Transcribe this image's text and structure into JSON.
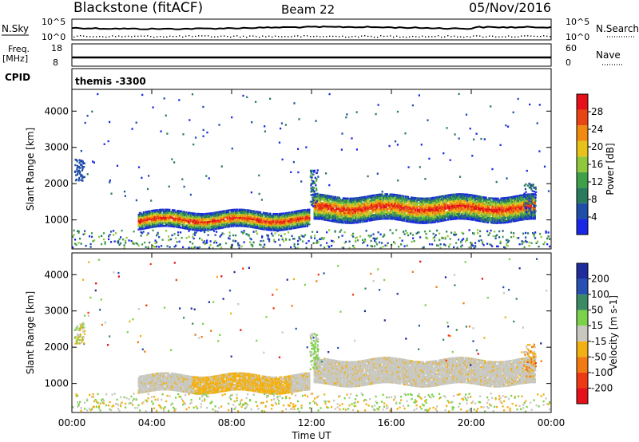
{
  "header": {
    "station": "Blackstone (fitACF)",
    "beam": "Beam 22",
    "date": "05/Nov/2016"
  },
  "panels": {
    "noise": {
      "left_label": "N.Sky",
      "right_label": "N.Search",
      "tick_hi_left": "10^5",
      "tick_lo_left": "10^0",
      "tick_hi_right": "10^5",
      "tick_lo_right": "10^0"
    },
    "freq": {
      "left_label_1": "Freq.",
      "left_label_2": "[MHz]",
      "right_label": "Nave",
      "tick_hi_left": "18",
      "tick_lo_left": "8",
      "tick_hi_right": "60",
      "tick_lo_right": "0"
    },
    "cpid": {
      "left_label": "CPID",
      "value": "themis -3300"
    }
  },
  "colors": {
    "power": [
      "#1a26e6",
      "#1f4ea8",
      "#2a7a5e",
      "#3fa04a",
      "#8fc83a",
      "#e8c21a",
      "#f08a10",
      "#e84512",
      "#e6101a"
    ],
    "velocity": [
      "#1e2c9c",
      "#2850b4",
      "#3a8a64",
      "#7bd24a",
      "#c8c8c0",
      "#f2b012",
      "#f27a10",
      "#ee3a12",
      "#e6101a"
    ]
  },
  "chart_data": [
    {
      "type": "heatmap",
      "name": "power",
      "ylabel": "Slant Range [km]",
      "yticks": [
        "1000",
        "2000",
        "3000",
        "4000"
      ],
      "ylim": [
        200,
        4600
      ],
      "xticks": [
        "00:00",
        "04:00",
        "08:00",
        "12:00",
        "16:00",
        "20:00",
        "00:00"
      ],
      "xlim": [
        0,
        24
      ],
      "colorbar_label": "Power [dB]",
      "colorbar_ticks": [
        "4",
        "8",
        "12",
        "16",
        "20",
        "24",
        "28"
      ],
      "echo_bands": [
        {
          "t_start": 3.3,
          "t_end": 11.9,
          "range_low": 800,
          "range_high": 1250,
          "peak_power_db": 28
        },
        {
          "t_start": 12.1,
          "t_end": 23.2,
          "range_low": 1000,
          "range_high": 1700,
          "peak_power_db": 30
        }
      ]
    },
    {
      "type": "heatmap",
      "name": "velocity",
      "ylabel": "Slant Range [km]",
      "yticks": [
        "1000",
        "2000",
        "3000",
        "4000"
      ],
      "ylim": [
        200,
        4600
      ],
      "xticks": [
        "00:00",
        "04:00",
        "08:00",
        "12:00",
        "16:00",
        "20:00",
        "00:00"
      ],
      "xlim": [
        0,
        24
      ],
      "xlabel": "Time UT",
      "colorbar_label": "Velocity [m s-1]",
      "colorbar_ticks": [
        "200",
        "100",
        "50",
        "15",
        "-15",
        "-50",
        "-100",
        "-200"
      ]
    }
  ]
}
